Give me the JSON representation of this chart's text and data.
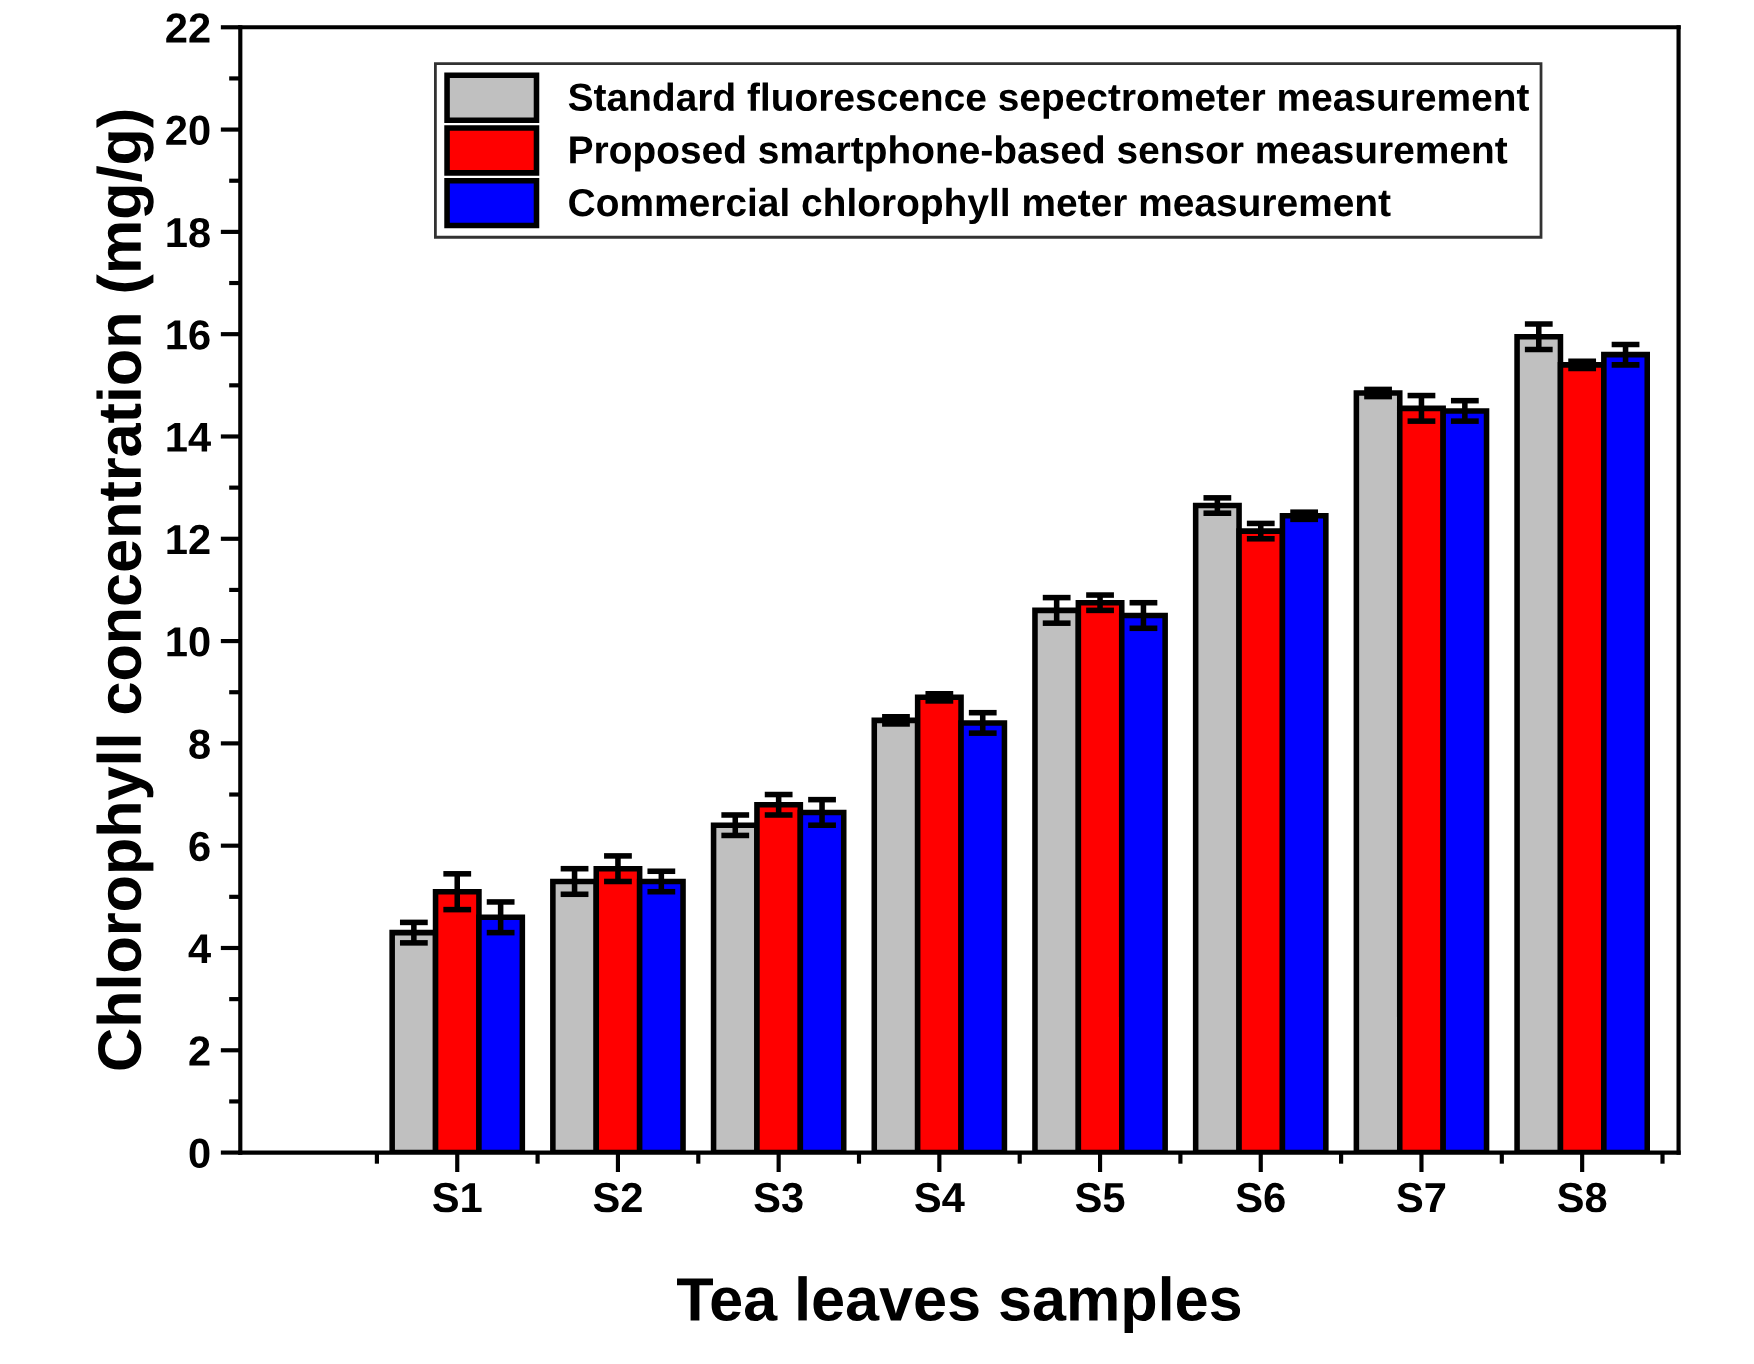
{
  "chart_data": {
    "type": "bar",
    "xlabel": "Tea leaves samples",
    "ylabel": "Chlorophyll concentration (mg/g)",
    "categories": [
      "S1",
      "S2",
      "S3",
      "S4",
      "S5",
      "S6",
      "S7",
      "S8"
    ],
    "series": [
      {
        "name": "Standard fluorescence sepectrometer measurement",
        "color": "#c0c0c0",
        "values": [
          4.3,
          5.3,
          6.4,
          8.45,
          10.6,
          12.65,
          14.85,
          15.95
        ],
        "errors": [
          0.2,
          0.25,
          0.2,
          0.07,
          0.25,
          0.15,
          0.07,
          0.25
        ]
      },
      {
        "name": "Proposed smartphone-based sensor measurement",
        "color": "#ff0000",
        "values": [
          5.1,
          5.55,
          6.8,
          8.9,
          10.75,
          12.15,
          14.55,
          15.4
        ],
        "errors": [
          0.35,
          0.25,
          0.2,
          0.07,
          0.15,
          0.15,
          0.25,
          0.07
        ]
      },
      {
        "name": "Commercial chlorophyll meter measurement",
        "color": "#0000ff",
        "values": [
          4.6,
          5.3,
          6.65,
          8.4,
          10.5,
          12.45,
          14.5,
          15.6
        ],
        "errors": [
          0.3,
          0.2,
          0.25,
          0.2,
          0.25,
          0.07,
          0.2,
          0.2
        ]
      }
    ],
    "ylim": [
      0,
      22
    ],
    "yticks": [
      0,
      2,
      4,
      6,
      8,
      10,
      12,
      14,
      16,
      18,
      20,
      22
    ],
    "grid": false,
    "legend": "top"
  }
}
